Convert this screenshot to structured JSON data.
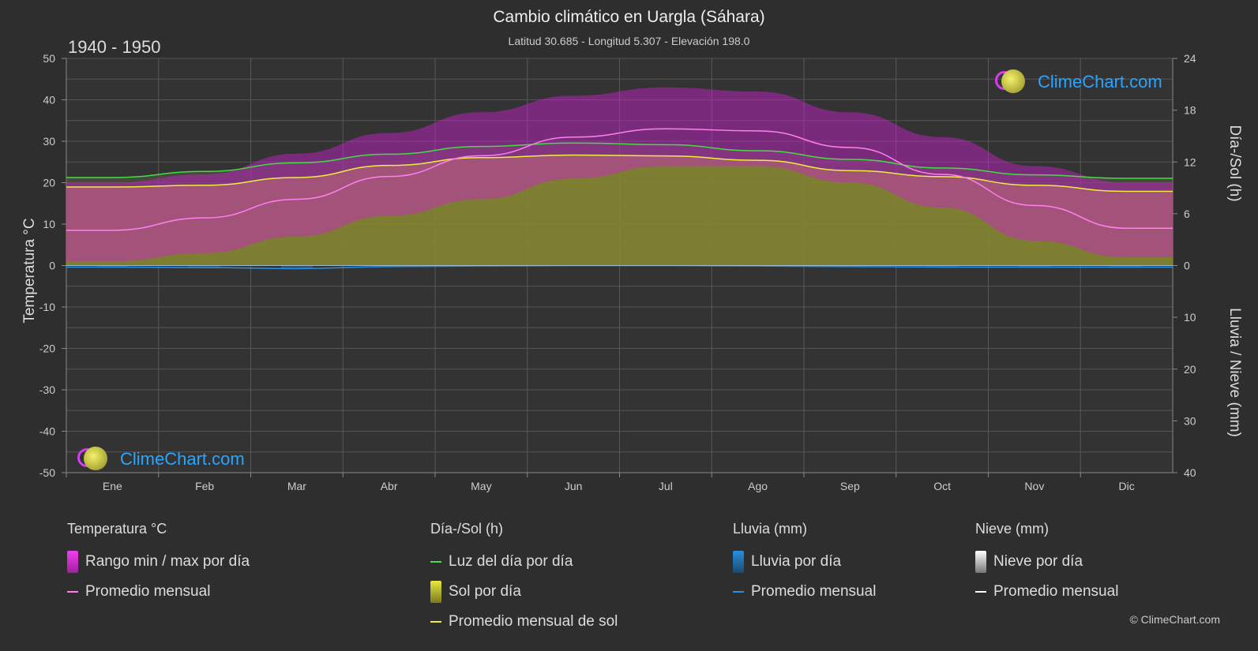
{
  "header": {
    "title": "Cambio climático en Uargla (Sáhara)",
    "subtitle": "Latitud 30.685 - Longitud 5.307 - Elevación 198.0",
    "period": "1940 - 1950"
  },
  "logo_text": "ClimeChart.com",
  "copyright": "© ClimeChart.com",
  "axes": {
    "left_label": "Temperatura °C",
    "right_top_label": "Día-/Sol (h)",
    "right_bottom_label": "Lluvia / Nieve (mm)"
  },
  "legend": {
    "temp": {
      "title": "Temperatura °C",
      "range": "Rango min / max por día",
      "avg": "Promedio mensual"
    },
    "sun": {
      "title": "Día-/Sol (h)",
      "daylight": "Luz del día por día",
      "sun_day": "Sol por día",
      "sun_avg": "Promedio mensual de sol"
    },
    "rain": {
      "title": "Lluvia (mm)",
      "rain_day": "Lluvia por día",
      "avg": "Promedio mensual"
    },
    "snow": {
      "title": "Nieve (mm)",
      "snow_day": "Nieve por día",
      "avg": "Promedio mensual"
    }
  },
  "colors": {
    "background": "#2e2e2e",
    "temp_range": "#d020d0",
    "temp_avg": "#ff7ff0",
    "daylight": "#44dd44",
    "sunshine": "#c8c840",
    "sun_avg": "#eeee40",
    "rain": "#2a8fe0",
    "snow": "#ffffff"
  },
  "chart_data": {
    "type": "line",
    "categories": [
      "Ene",
      "Feb",
      "Mar",
      "Abr",
      "May",
      "Jun",
      "Jul",
      "Ago",
      "Sep",
      "Oct",
      "Nov",
      "Dic"
    ],
    "y_left": {
      "label": "Temperatura °C",
      "range": [
        -50,
        50
      ],
      "ticks": [
        50,
        40,
        30,
        20,
        10,
        0,
        -10,
        -20,
        -30,
        -40,
        -50
      ]
    },
    "y_right_top": {
      "label": "Día-/Sol (h)",
      "range": [
        0,
        24
      ],
      "ticks": [
        24,
        18,
        12,
        6,
        0
      ]
    },
    "y_right_bottom": {
      "label": "Lluvia / Nieve (mm)",
      "range": [
        0,
        40
      ],
      "ticks": [
        0,
        10,
        20,
        30,
        40
      ]
    },
    "series": [
      {
        "name": "Promedio mensual",
        "axis": "temperature",
        "values": [
          8.5,
          11.5,
          16,
          21.5,
          26.5,
          31,
          33,
          32.5,
          28.5,
          22,
          14.5,
          9
        ]
      },
      {
        "name": "Rango min / max por día",
        "axis": "temperature",
        "min": [
          1,
          3,
          7,
          12,
          16,
          21,
          24,
          24,
          20,
          14,
          6,
          2
        ],
        "max": [
          20,
          22,
          27,
          32,
          37,
          41,
          43,
          42,
          37,
          31,
          24,
          20
        ]
      },
      {
        "name": "Luz del día por día",
        "axis": "hours",
        "values": [
          10.2,
          10.9,
          11.9,
          12.9,
          13.8,
          14.2,
          14.0,
          13.3,
          12.3,
          11.3,
          10.5,
          10.1
        ]
      },
      {
        "name": "Promedio mensual de sol",
        "axis": "hours",
        "values": [
          9.1,
          9.3,
          10.2,
          11.6,
          12.5,
          12.8,
          12.7,
          12.2,
          11.0,
          10.3,
          9.3,
          8.6
        ]
      },
      {
        "name": "Promedio mensual",
        "axis": "rain_mm",
        "values": [
          0.3,
          0.4,
          0.6,
          0.2,
          0.1,
          0.0,
          0.0,
          0.1,
          0.2,
          0.3,
          0.3,
          0.3
        ]
      }
    ]
  }
}
